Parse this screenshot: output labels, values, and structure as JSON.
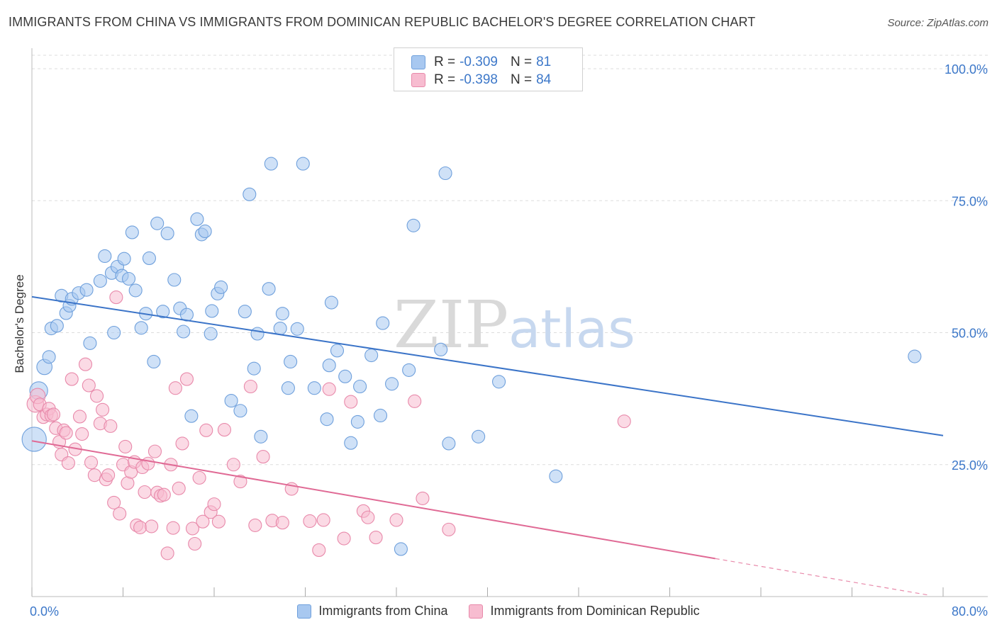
{
  "header": {
    "title": "IMMIGRANTS FROM CHINA VS IMMIGRANTS FROM DOMINICAN REPUBLIC BACHELOR'S DEGREE CORRELATION CHART",
    "source": "Source: ZipAtlas.com"
  },
  "watermark": {
    "zip": "ZIP",
    "atlas": "atlas"
  },
  "stats_legend": [
    {
      "r_label": "R =",
      "r_value": "-0.309",
      "n_label": "N =",
      "n_value": "81",
      "color": "#a8c8f0",
      "border": "#6fa0dc"
    },
    {
      "r_label": "R =",
      "r_value": "-0.398",
      "n_label": "N =",
      "n_value": "84",
      "color": "#f7bcd0",
      "border": "#e889aa"
    }
  ],
  "bottom_legend": [
    {
      "label": "Immigrants from China",
      "color": "#a8c8f0",
      "border": "#6fa0dc"
    },
    {
      "label": "Immigrants from Dominican Republic",
      "color": "#f7bcd0",
      "border": "#e889aa"
    }
  ],
  "chart_data": {
    "type": "scatter",
    "title": "IMMIGRANTS FROM CHINA VS IMMIGRANTS FROM DOMINICAN REPUBLIC BACHELOR'S DEGREE CORRELATION CHART",
    "xlabel": "",
    "ylabel": "Bachelor's Degree",
    "xlim": [
      0,
      80
    ],
    "ylim": [
      0,
      100
    ],
    "x_tick_labels": [
      "0.0%",
      "80.0%"
    ],
    "y_tick_labels": [
      "100.0%",
      "75.0%",
      "50.0%",
      "25.0%"
    ],
    "y_ticks": [
      100,
      75,
      50,
      25
    ],
    "grid": true,
    "legend_position": "bottom",
    "series": [
      {
        "name": "Immigrants from China",
        "color": "#6fa0dc",
        "fill": "#a8c8f0",
        "trend": {
          "x": [
            0,
            80
          ],
          "y": [
            56.8,
            30.5
          ],
          "dashed_from": null
        },
        "points": [
          [
            0.2,
            29.8,
            1.9
          ],
          [
            0.6,
            39.0,
            1.4
          ],
          [
            1.1,
            43.5,
            1.2
          ],
          [
            1.5,
            45.4,
            1
          ],
          [
            1.7,
            50.8,
            1
          ],
          [
            2.2,
            51.3,
            1
          ],
          [
            2.6,
            57.0,
            1
          ],
          [
            3.0,
            53.7,
            1
          ],
          [
            3.3,
            55.1,
            1
          ],
          [
            3.5,
            56.4,
            1
          ],
          [
            4.1,
            57.5,
            1
          ],
          [
            4.8,
            58.1,
            1
          ],
          [
            5.1,
            48.0,
            1
          ],
          [
            6.0,
            59.8,
            1
          ],
          [
            6.4,
            64.5,
            1
          ],
          [
            7.0,
            61.3,
            1
          ],
          [
            7.2,
            50.0,
            1
          ],
          [
            7.5,
            62.5,
            1
          ],
          [
            7.9,
            60.8,
            1
          ],
          [
            8.1,
            64.0,
            1
          ],
          [
            8.5,
            60.2,
            1
          ],
          [
            8.8,
            69.0,
            1
          ],
          [
            9.1,
            58.0,
            1
          ],
          [
            9.6,
            50.9,
            1
          ],
          [
            10.0,
            53.6,
            1
          ],
          [
            10.3,
            64.1,
            1
          ],
          [
            10.7,
            44.5,
            1
          ],
          [
            11.0,
            70.7,
            1
          ],
          [
            11.5,
            54.0,
            1
          ],
          [
            11.9,
            68.8,
            1
          ],
          [
            12.5,
            60.0,
            1
          ],
          [
            13.0,
            54.6,
            1
          ],
          [
            13.3,
            50.2,
            1
          ],
          [
            13.6,
            53.4,
            1
          ],
          [
            14.0,
            34.2,
            1
          ],
          [
            14.5,
            71.5,
            1
          ],
          [
            14.9,
            68.6,
            1
          ],
          [
            15.2,
            69.2,
            1
          ],
          [
            15.7,
            49.8,
            1
          ],
          [
            15.8,
            54.1,
            1
          ],
          [
            16.3,
            57.4,
            1
          ],
          [
            16.6,
            58.6,
            1
          ],
          [
            17.5,
            37.1,
            1
          ],
          [
            18.3,
            35.2,
            1
          ],
          [
            18.7,
            54.0,
            1
          ],
          [
            19.1,
            76.2,
            1
          ],
          [
            19.5,
            43.2,
            1
          ],
          [
            19.8,
            49.8,
            1
          ],
          [
            20.1,
            30.3,
            1
          ],
          [
            20.8,
            58.3,
            1
          ],
          [
            21.0,
            82.0,
            1
          ],
          [
            21.8,
            50.8,
            1
          ],
          [
            22.0,
            53.6,
            1
          ],
          [
            22.5,
            39.5,
            1
          ],
          [
            22.7,
            44.5,
            1
          ],
          [
            23.3,
            50.7,
            1
          ],
          [
            23.8,
            82.0,
            1
          ],
          [
            24.8,
            39.5,
            1
          ],
          [
            25.9,
            33.6,
            1
          ],
          [
            26.1,
            43.8,
            1
          ],
          [
            26.3,
            55.7,
            1
          ],
          [
            26.8,
            46.6,
            1
          ],
          [
            27.5,
            41.7,
            1
          ],
          [
            28.0,
            29.1,
            1
          ],
          [
            28.6,
            33.1,
            1
          ],
          [
            28.8,
            39.8,
            1
          ],
          [
            29.8,
            45.7,
            1
          ],
          [
            30.6,
            34.3,
            1
          ],
          [
            30.8,
            51.8,
            1
          ],
          [
            31.6,
            40.3,
            1
          ],
          [
            32.4,
            9.0,
            1
          ],
          [
            33.1,
            42.9,
            1
          ],
          [
            33.5,
            70.3,
            1
          ],
          [
            35.9,
            46.8,
            1
          ],
          [
            36.3,
            80.2,
            1
          ],
          [
            36.6,
            29.0,
            1
          ],
          [
            39.2,
            30.3,
            1
          ],
          [
            41.0,
            40.7,
            1
          ],
          [
            46.0,
            22.8,
            1
          ],
          [
            77.5,
            45.5,
            1
          ]
        ]
      },
      {
        "name": "Immigrants from Dominican Republic",
        "color": "#e889aa",
        "fill": "#f7bcd0",
        "trend": {
          "x": [
            0,
            60
          ],
          "y": [
            29.5,
            7.2
          ],
          "dashed_to": [
            80,
            0
          ]
        },
        "points": [
          [
            0.3,
            36.5,
            1.3
          ],
          [
            0.5,
            38.0,
            1.2
          ],
          [
            0.7,
            36.4,
            1
          ],
          [
            1.0,
            34.0,
            1
          ],
          [
            1.3,
            34.5,
            1
          ],
          [
            1.5,
            35.6,
            1
          ],
          [
            1.7,
            34.3,
            1
          ],
          [
            1.9,
            34.5,
            1
          ],
          [
            2.1,
            31.9,
            1
          ],
          [
            2.4,
            29.3,
            1
          ],
          [
            2.6,
            26.9,
            1
          ],
          [
            2.8,
            31.5,
            1
          ],
          [
            3.0,
            31.0,
            1
          ],
          [
            3.2,
            25.3,
            1
          ],
          [
            3.5,
            41.2,
            1
          ],
          [
            3.8,
            27.9,
            1
          ],
          [
            4.2,
            34.1,
            1
          ],
          [
            4.4,
            30.8,
            1
          ],
          [
            4.7,
            44.0,
            1
          ],
          [
            5.0,
            40.0,
            1
          ],
          [
            5.2,
            25.4,
            1
          ],
          [
            5.5,
            23.0,
            1
          ],
          [
            5.7,
            38.0,
            1
          ],
          [
            6.0,
            32.8,
            1
          ],
          [
            6.2,
            35.4,
            1
          ],
          [
            6.5,
            22.2,
            1
          ],
          [
            6.7,
            23.0,
            1
          ],
          [
            6.9,
            32.3,
            1
          ],
          [
            7.2,
            17.8,
            1
          ],
          [
            7.4,
            56.7,
            1
          ],
          [
            7.7,
            15.7,
            1
          ],
          [
            8.0,
            25.0,
            1
          ],
          [
            8.2,
            28.4,
            1
          ],
          [
            8.4,
            21.5,
            1
          ],
          [
            8.7,
            23.6,
            1
          ],
          [
            9.0,
            25.5,
            1
          ],
          [
            9.2,
            13.5,
            1
          ],
          [
            9.5,
            13.1,
            1
          ],
          [
            9.7,
            24.5,
            1
          ],
          [
            9.9,
            19.8,
            1
          ],
          [
            10.2,
            25.2,
            1
          ],
          [
            10.5,
            13.3,
            1
          ],
          [
            10.8,
            27.5,
            1
          ],
          [
            11.0,
            19.7,
            1
          ],
          [
            11.3,
            19.1,
            1
          ],
          [
            11.6,
            19.3,
            1
          ],
          [
            11.9,
            8.2,
            1
          ],
          [
            12.2,
            25.0,
            1
          ],
          [
            12.4,
            13.0,
            1
          ],
          [
            12.6,
            39.5,
            1
          ],
          [
            12.9,
            20.5,
            1
          ],
          [
            13.2,
            29.0,
            1
          ],
          [
            13.6,
            41.2,
            1
          ],
          [
            14.1,
            12.9,
            1
          ],
          [
            14.3,
            10.0,
            1
          ],
          [
            14.7,
            22.5,
            1
          ],
          [
            15.0,
            14.2,
            1
          ],
          [
            15.3,
            31.5,
            1
          ],
          [
            15.7,
            16.0,
            1
          ],
          [
            16.0,
            17.5,
            1
          ],
          [
            16.4,
            14.2,
            1
          ],
          [
            16.9,
            31.6,
            1
          ],
          [
            17.7,
            25.0,
            1
          ],
          [
            18.3,
            21.8,
            1
          ],
          [
            19.2,
            39.8,
            1
          ],
          [
            19.6,
            13.5,
            1
          ],
          [
            20.3,
            26.5,
            1
          ],
          [
            21.1,
            14.4,
            1
          ],
          [
            22.0,
            14.0,
            1
          ],
          [
            22.8,
            20.4,
            1
          ],
          [
            24.4,
            14.3,
            1
          ],
          [
            25.2,
            8.8,
            1
          ],
          [
            25.6,
            14.5,
            1
          ],
          [
            26.1,
            39.3,
            1
          ],
          [
            27.4,
            11.0,
            1
          ],
          [
            28.0,
            36.9,
            1
          ],
          [
            29.1,
            16.2,
            1
          ],
          [
            29.5,
            15.0,
            1
          ],
          [
            30.2,
            11.2,
            1
          ],
          [
            32.0,
            14.5,
            1
          ],
          [
            33.6,
            37.0,
            1
          ],
          [
            34.3,
            18.6,
            1
          ],
          [
            36.6,
            12.7,
            1
          ],
          [
            52.0,
            33.2,
            1
          ]
        ]
      }
    ]
  }
}
